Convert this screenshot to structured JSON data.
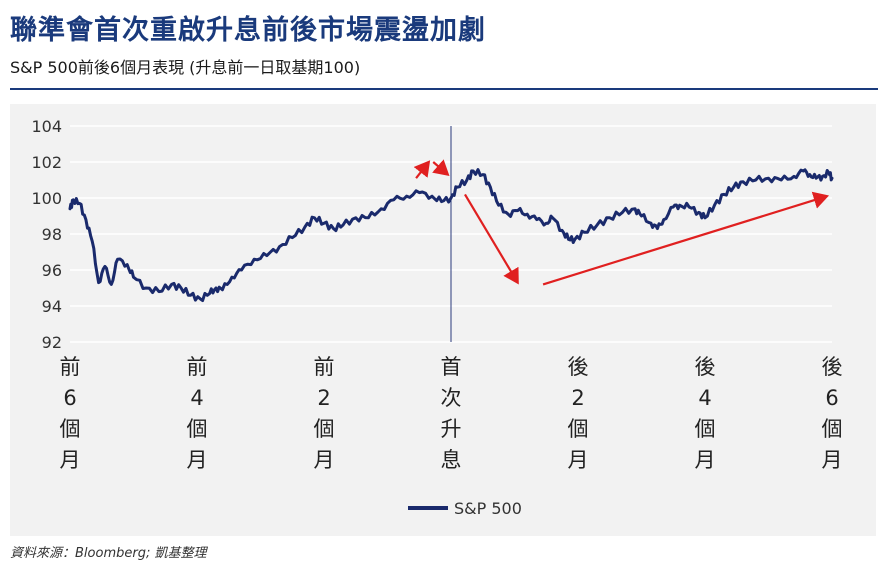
{
  "title": "聯準會首次重啟升息前後市場震盪加劇",
  "subtitle": "S&P 500前後6個月表現 (升息前一日取基期100)",
  "source": "資料來源：Bloomberg; 凱基整理",
  "colors": {
    "line": "#1a2a6c",
    "arrow": "#e02020",
    "title": "#1a3a7c",
    "panel": "#f2f2f2",
    "grid": "#ffffff"
  },
  "chart_data": {
    "type": "line",
    "title": "",
    "xlabel": "",
    "ylabel": "",
    "ylim": [
      92,
      104
    ],
    "yticks": [
      92,
      94,
      96,
      98,
      100,
      102,
      104
    ],
    "xlim": [
      -6,
      6
    ],
    "grid": true,
    "legend_placement": "bottom-center",
    "event_line_x": 0,
    "categories": [
      {
        "x": -6,
        "label": "前6個月",
        "chars": [
          "前",
          "6",
          "個",
          "月"
        ]
      },
      {
        "x": -4,
        "label": "前4個月",
        "chars": [
          "前",
          "4",
          "個",
          "月"
        ]
      },
      {
        "x": -2,
        "label": "前2個月",
        "chars": [
          "前",
          "2",
          "個",
          "月"
        ]
      },
      {
        "x": 0,
        "label": "首次升息",
        "chars": [
          "首",
          "次",
          "升",
          "息"
        ]
      },
      {
        "x": 2,
        "label": "後2個月",
        "chars": [
          "後",
          "2",
          "個",
          "月"
        ]
      },
      {
        "x": 4,
        "label": "後4個月",
        "chars": [
          "後",
          "4",
          "個",
          "月"
        ]
      },
      {
        "x": 6,
        "label": "後6個月",
        "chars": [
          "後",
          "6",
          "個",
          "月"
        ]
      }
    ],
    "series": [
      {
        "name": "S&P 500",
        "points": [
          [
            -6.0,
            99.4
          ],
          [
            -5.95,
            99.9
          ],
          [
            -5.85,
            99.7
          ],
          [
            -5.75,
            98.8
          ],
          [
            -5.65,
            97.6
          ],
          [
            -5.55,
            95.3
          ],
          [
            -5.45,
            96.2
          ],
          [
            -5.35,
            95.2
          ],
          [
            -5.25,
            96.6
          ],
          [
            -5.1,
            96.3
          ],
          [
            -5.0,
            95.6
          ],
          [
            -4.8,
            95.0
          ],
          [
            -4.6,
            94.8
          ],
          [
            -4.4,
            95.2
          ],
          [
            -4.25,
            95.0
          ],
          [
            -4.1,
            94.6
          ],
          [
            -3.95,
            94.4
          ],
          [
            -3.8,
            94.7
          ],
          [
            -3.7,
            95.0
          ],
          [
            -3.6,
            94.9
          ],
          [
            -3.45,
            95.6
          ],
          [
            -3.3,
            96.0
          ],
          [
            -3.1,
            96.6
          ],
          [
            -2.9,
            96.8
          ],
          [
            -2.7,
            97.3
          ],
          [
            -2.5,
            97.8
          ],
          [
            -2.3,
            98.4
          ],
          [
            -2.15,
            98.9
          ],
          [
            -2.0,
            98.6
          ],
          [
            -1.85,
            98.3
          ],
          [
            -1.7,
            98.5
          ],
          [
            -1.5,
            98.9
          ],
          [
            -1.3,
            98.9
          ],
          [
            -1.1,
            99.4
          ],
          [
            -0.9,
            99.9
          ],
          [
            -0.7,
            100.1
          ],
          [
            -0.5,
            100.3
          ],
          [
            -0.3,
            100.1
          ],
          [
            -0.15,
            99.8
          ],
          [
            0.0,
            100.0
          ],
          [
            0.1,
            100.6
          ],
          [
            0.25,
            101.0
          ],
          [
            0.35,
            101.5
          ],
          [
            0.5,
            101.3
          ],
          [
            0.62,
            100.6
          ],
          [
            0.75,
            99.6
          ],
          [
            0.9,
            99.1
          ],
          [
            1.05,
            99.3
          ],
          [
            1.2,
            99.1
          ],
          [
            1.35,
            98.8
          ],
          [
            1.5,
            98.6
          ],
          [
            1.6,
            98.9
          ],
          [
            1.75,
            98.2
          ],
          [
            1.85,
            97.7
          ],
          [
            1.95,
            97.7
          ],
          [
            2.1,
            98.1
          ],
          [
            2.3,
            98.5
          ],
          [
            2.5,
            98.9
          ],
          [
            2.7,
            99.2
          ],
          [
            2.9,
            99.4
          ],
          [
            3.0,
            99.0
          ],
          [
            3.15,
            98.6
          ],
          [
            3.25,
            98.3
          ],
          [
            3.35,
            98.8
          ],
          [
            3.5,
            99.5
          ],
          [
            3.6,
            99.6
          ],
          [
            3.75,
            99.5
          ],
          [
            3.9,
            99.2
          ],
          [
            4.0,
            98.9
          ],
          [
            4.15,
            99.6
          ],
          [
            4.3,
            100.2
          ],
          [
            4.45,
            100.6
          ],
          [
            4.6,
            100.9
          ],
          [
            4.8,
            101.0
          ],
          [
            5.0,
            101.1
          ],
          [
            5.2,
            101.0
          ],
          [
            5.4,
            101.2
          ],
          [
            5.55,
            101.5
          ],
          [
            5.65,
            101.3
          ],
          [
            5.75,
            101.1
          ],
          [
            5.85,
            101.2
          ],
          [
            5.95,
            101.4
          ],
          [
            6.0,
            101.1
          ]
        ]
      }
    ],
    "annotations": [
      {
        "type": "arrow",
        "from": [
          -0.55,
          101.1
        ],
        "to": [
          -0.35,
          102.0
        ]
      },
      {
        "type": "arrow",
        "from": [
          -0.28,
          102.0
        ],
        "to": [
          -0.05,
          101.3
        ]
      },
      {
        "type": "arrow",
        "from": [
          0.22,
          100.2
        ],
        "to": [
          1.05,
          95.3
        ]
      },
      {
        "type": "arrow",
        "from": [
          1.45,
          95.2
        ],
        "to": [
          5.92,
          100.1
        ]
      }
    ]
  }
}
